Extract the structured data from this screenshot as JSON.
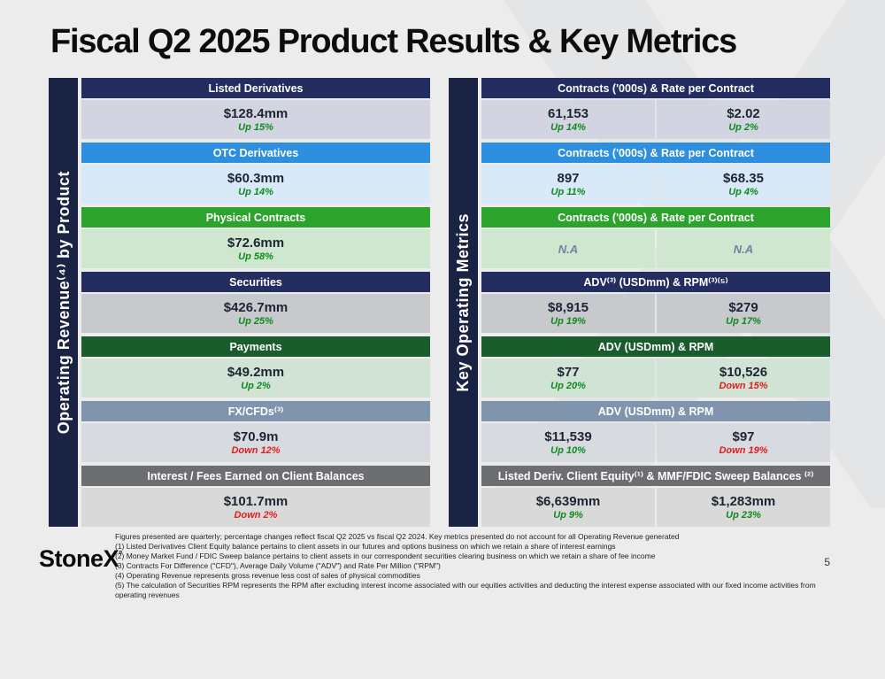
{
  "title": "Fiscal Q2 2025 Product Results & Key Metrics",
  "page_number": "5",
  "logo_text": "StoneX",
  "logo_mark": "°",
  "left_section": {
    "axis_label": "Operating Revenue⁽⁴⁾ by Product",
    "rows": [
      {
        "header": "Listed Derivatives",
        "value": "$128.4mm",
        "change": "Up 15%",
        "direction": "up"
      },
      {
        "header": "OTC Derivatives",
        "value": "$60.3mm",
        "change": "Up 14%",
        "direction": "up"
      },
      {
        "header": "Physical Contracts",
        "value": "$72.6mm",
        "change": "Up 58%",
        "direction": "up"
      },
      {
        "header": "Securities",
        "value": "$426.7mm",
        "change": "Up 25%",
        "direction": "up"
      },
      {
        "header": "Payments",
        "value": "$49.2mm",
        "change": "Up 2%",
        "direction": "up"
      },
      {
        "header": "FX/CFDs⁽³⁾",
        "value": "$70.9m",
        "change": "Down 12%",
        "direction": "down"
      },
      {
        "header": "Interest / Fees Earned on Client Balances",
        "value": "$101.7mm",
        "change": "Down 2%",
        "direction": "down"
      }
    ]
  },
  "right_section": {
    "axis_label": "Key Operating Metrics",
    "rows": [
      {
        "header": "Contracts ('000s) & Rate per Contract",
        "cells": [
          {
            "value": "61,153",
            "change": "Up 14%",
            "direction": "up"
          },
          {
            "value": "$2.02",
            "change": "Up 2%",
            "direction": "up"
          }
        ]
      },
      {
        "header": "Contracts ('000s) & Rate per Contract",
        "cells": [
          {
            "value": "897",
            "change": "Up 11%",
            "direction": "up"
          },
          {
            "value": "$68.35",
            "change": "Up 4%",
            "direction": "up"
          }
        ]
      },
      {
        "header": "Contracts ('000s) & Rate per Contract",
        "cells": [
          {
            "value": "N.A",
            "change": "",
            "direction": "none"
          },
          {
            "value": "N.A",
            "change": "",
            "direction": "none"
          }
        ]
      },
      {
        "header": "ADV⁽³⁾ (USDmm) & RPM⁽³⁾⁽⁵⁾",
        "cells": [
          {
            "value": "$8,915",
            "change": "Up 19%",
            "direction": "up"
          },
          {
            "value": "$279",
            "change": "Up 17%",
            "direction": "up"
          }
        ]
      },
      {
        "header": "ADV (USDmm) & RPM",
        "cells": [
          {
            "value": "$77",
            "change": "Up 20%",
            "direction": "up"
          },
          {
            "value": "$10,526",
            "change": "Down 15%",
            "direction": "down"
          }
        ]
      },
      {
        "header": "ADV (USDmm) & RPM",
        "cells": [
          {
            "value": "$11,539",
            "change": "Up 10%",
            "direction": "up"
          },
          {
            "value": "$97",
            "change": "Down 19%",
            "direction": "down"
          }
        ]
      },
      {
        "header": "Listed Deriv. Client Equity⁽¹⁾ & MMF/FDIC Sweep Balances ⁽²⁾",
        "cells": [
          {
            "value": "$6,639mm",
            "change": "Up 9%",
            "direction": "up"
          },
          {
            "value": "$1,283mm",
            "change": "Up 23%",
            "direction": "up"
          }
        ]
      }
    ]
  },
  "footnotes": [
    "Figures presented are quarterly; percentage changes reflect fiscal Q2 2025 vs fiscal Q2 2024.  Key metrics presented do not account for all Operating Revenue generated",
    "(1) Listed Derivatives Client Equity balance pertains to client assets in our futures and options business on which we retain a share of interest earnings",
    "(2) Money Market Fund / FDIC Sweep balance pertains to client assets in our correspondent securities clearing business on which we retain a share of fee income",
    "(3) Contracts For Difference (\"CFD\"), Average Daily Volume (\"ADV\") and Rate Per Million (\"RPM\")",
    "(4) Operating Revenue represents gross revenue less cost of sales of physical commodities",
    "(5) The calculation of Securities RPM represents the RPM after excluding interest income associated with our equities activities and deducting the interest expense associated with our fixed income activities from operating revenues"
  ],
  "colors": {
    "navy_header": "#232d5f",
    "blue_header": "#2e8fe0",
    "green_header": "#2ba32c",
    "dark_green_header": "#1b5c2c",
    "slate_header": "#8194ae",
    "gray_header": "#6d6e71",
    "side_bar": "#1b2344",
    "up_text": "#0d8a1d",
    "down_text": "#e01e1e",
    "background": "#ececec"
  }
}
